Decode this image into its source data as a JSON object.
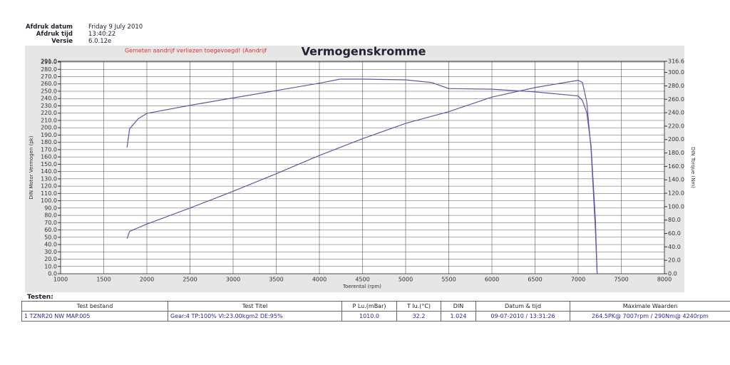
{
  "header": {
    "rows": [
      [
        "Afdruk datum",
        "Friday 9 July 2010"
      ],
      [
        "Afdruk tijd",
        "13:40:22"
      ],
      [
        "Versie",
        "6.0.12e"
      ]
    ]
  },
  "chart_data": {
    "type": "line",
    "title": "Vermogenskromme",
    "annotation": "Gemeten aandrijf verliezen toegevoegd! (Aandrijf",
    "xlabel": "Toerental (rpm)",
    "ylabel": "DIN Motor Vermogen (pk)",
    "y2label": "DIN Torque (Nm)",
    "xlim": [
      1000,
      8000
    ],
    "xticks": [
      1000,
      1500,
      2000,
      2500,
      3000,
      3500,
      4000,
      4500,
      5000,
      5500,
      6000,
      6500,
      7000,
      7500,
      8000
    ],
    "ylim": [
      0,
      291
    ],
    "yticks": [
      {
        "value": 0,
        "label": "0.0"
      },
      {
        "value": 10,
        "label": "10.0"
      },
      {
        "value": 20,
        "label": "20.0"
      },
      {
        "value": 30,
        "label": "30.0"
      },
      {
        "value": 40,
        "label": "40.0"
      },
      {
        "value": 50,
        "label": "50.0"
      },
      {
        "value": 60,
        "label": "60.0"
      },
      {
        "value": 70,
        "label": "70.0"
      },
      {
        "value": 80,
        "label": "80.0"
      },
      {
        "value": 90,
        "label": "90.0"
      },
      {
        "value": 100,
        "label": "100.0"
      },
      {
        "value": 110,
        "label": "110.0"
      },
      {
        "value": 120,
        "label": "120.0"
      },
      {
        "value": 130,
        "label": "130.0"
      },
      {
        "value": 140,
        "label": "140.0"
      },
      {
        "value": 150,
        "label": "150.0"
      },
      {
        "value": 160,
        "label": "160.0"
      },
      {
        "value": 170,
        "label": "170.0"
      },
      {
        "value": 180,
        "label": "180.0"
      },
      {
        "value": 190,
        "label": "190.0"
      },
      {
        "value": 200,
        "label": "200.0"
      },
      {
        "value": 210,
        "label": "210.0"
      },
      {
        "value": 220,
        "label": "220.0"
      },
      {
        "value": 230,
        "label": "230.0"
      },
      {
        "value": 240,
        "label": "240.0"
      },
      {
        "value": 250,
        "label": "250.0"
      },
      {
        "value": 260,
        "label": "260.0"
      },
      {
        "value": 270,
        "label": "270.0"
      },
      {
        "value": 280,
        "label": "280.0"
      },
      {
        "value": 290,
        "label": "290.0"
      },
      {
        "value": 291,
        "label": "291.0"
      }
    ],
    "y2lim": [
      0,
      316.6
    ],
    "y2ticks": [
      {
        "value": 0,
        "label": "0.0"
      },
      {
        "value": 20,
        "label": "20.0"
      },
      {
        "value": 40,
        "label": "40.0"
      },
      {
        "value": 60,
        "label": "60.0"
      },
      {
        "value": 80,
        "label": "80.0"
      },
      {
        "value": 100,
        "label": "100.0"
      },
      {
        "value": 120,
        "label": "120.0"
      },
      {
        "value": 140,
        "label": "140.0"
      },
      {
        "value": 160,
        "label": "160.0"
      },
      {
        "value": 180,
        "label": "180.0"
      },
      {
        "value": 200,
        "label": "200.0"
      },
      {
        "value": 220,
        "label": "220.0"
      },
      {
        "value": 240,
        "label": "240.0"
      },
      {
        "value": 260,
        "label": "260.0"
      },
      {
        "value": 280,
        "label": "280.0"
      },
      {
        "value": 300,
        "label": "300.0"
      },
      316.6
    ],
    "grid": true,
    "series": [
      {
        "color": "#5a5aa8",
        "x": [
          1770,
          1800,
          2000,
          2500,
          3000,
          3500,
          4000,
          4500,
          5000,
          5250,
          5500,
          6000,
          6500,
          7000,
          7050,
          7100,
          7150,
          7200,
          7220
        ],
        "values": [
          48,
          58,
          68,
          90,
          113,
          137,
          162,
          185,
          206,
          214,
          222,
          242,
          255,
          265,
          262,
          235,
          170,
          60,
          0
        ]
      },
      {
        "color": "#5a5aa8",
        "axis": "y2",
        "x": [
          1770,
          1800,
          1900,
          2000,
          2500,
          3000,
          3500,
          4000,
          4240,
          4500,
          5000,
          5300,
          5500,
          6000,
          6500,
          7000,
          7050,
          7100,
          7150,
          7200,
          7220
        ],
        "values": [
          188,
          216,
          231,
          239,
          251,
          262,
          273,
          284,
          290,
          290,
          289,
          285,
          276,
          275,
          271,
          265,
          258,
          240,
          190,
          80,
          0
        ]
      }
    ]
  },
  "table": {
    "caption": "Testen:",
    "columns": [
      "Test bestand",
      "Test Titel",
      "P Lu.(mBar)",
      "T lu.(°C)",
      "DIN",
      "Datum & tijd",
      "Maximale Waarden"
    ],
    "rows": [
      [
        "1  TZNR20 NW MAP.005",
        "Gear:4 TP:100% VI:23.00kgm2 DE:95%",
        "1010.0",
        "32.2",
        "1.024",
        "09-07-2010 / 13:31:26",
        "264.5PK@ 7007rpm / 290Nm@ 4240rpm"
      ]
    ]
  }
}
